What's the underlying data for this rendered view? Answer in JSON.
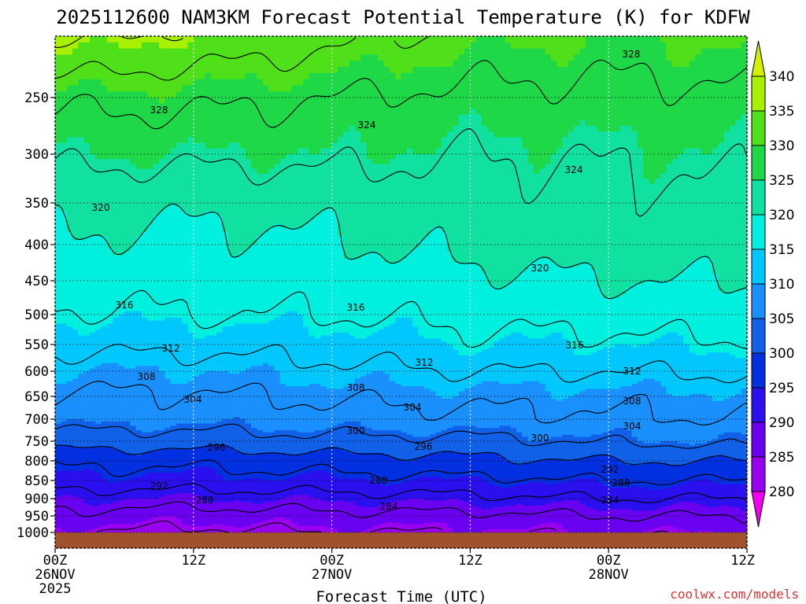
{
  "chart_data": {
    "type": "heatmap",
    "title": "2025112600 NAM3KM Forecast Potential Temperature (K) for KDFW",
    "xlabel": "Forecast Time (UTC)",
    "ylabel": "",
    "y_axis_inverted": true,
    "y_ticks": [
      "250",
      "300",
      "350",
      "400",
      "450",
      "500",
      "550",
      "600",
      "650",
      "700",
      "750",
      "800",
      "850",
      "900",
      "950",
      "1000"
    ],
    "ylim": [
      200,
      1025
    ],
    "x_ticks": [
      {
        "top": "00Z",
        "mid": "26NOV",
        "bottom": "2025"
      },
      {
        "top": "12Z",
        "mid": "",
        "bottom": ""
      },
      {
        "top": "00Z",
        "mid": "27NOV",
        "bottom": ""
      },
      {
        "top": "12Z",
        "mid": "",
        "bottom": ""
      },
      {
        "top": "00Z",
        "mid": "28NOV",
        "bottom": ""
      },
      {
        "top": "12Z",
        "mid": "",
        "bottom": ""
      }
    ],
    "xlim_hours": [
      0,
      60
    ],
    "grid": true,
    "colorbar": {
      "levels": [
        "340",
        "335",
        "330",
        "325",
        "320",
        "315",
        "310",
        "305",
        "300",
        "295",
        "290",
        "285",
        "280"
      ],
      "colors": [
        "#a6f000",
        "#50e01a",
        "#1ed848",
        "#10e0a0",
        "#00f0e0",
        "#00c8ff",
        "#1a90ff",
        "#1060e8",
        "#0030e0",
        "#2a10ee",
        "#6a00f0",
        "#9a00f0",
        "#c800e8"
      ],
      "top_arrow_color": "#d2f000",
      "bottom_arrow_color": "#f000f0"
    },
    "theta_profiles": [
      {
        "hour": 0,
        "levels_hPa": [
          200,
          250,
          300,
          350,
          400,
          450,
          500,
          550,
          600,
          650,
          700,
          750,
          800,
          850,
          900,
          950,
          1000
        ],
        "theta_K": [
          337,
          329,
          325,
          321.5,
          319.5,
          317.5,
          315.5,
          313,
          310,
          307.5,
          306,
          302,
          297,
          294,
          290,
          287,
          284
        ]
      },
      {
        "hour": 12,
        "levels_hPa": [
          200,
          250,
          300,
          350,
          400,
          450,
          500,
          550,
          600,
          650,
          700,
          750,
          800,
          850,
          900,
          950,
          1000
        ],
        "theta_K": [
          335,
          329,
          325,
          321,
          319,
          317.5,
          316,
          313,
          310,
          307.5,
          306,
          302,
          297,
          294,
          290,
          286,
          283
        ]
      },
      {
        "hour": 24,
        "levels_hPa": [
          200,
          250,
          300,
          350,
          400,
          450,
          500,
          550,
          600,
          650,
          700,
          750,
          800,
          850,
          900,
          950,
          1000
        ],
        "theta_K": [
          333,
          328,
          325,
          321.5,
          319.5,
          318,
          316,
          313.5,
          311,
          308.5,
          306.5,
          303,
          298,
          294.5,
          290.5,
          287,
          284
        ]
      },
      {
        "hour": 36,
        "levels_hPa": [
          200,
          250,
          300,
          350,
          400,
          450,
          500,
          550,
          600,
          650,
          700,
          750,
          800,
          850,
          900,
          950,
          1000
        ],
        "theta_K": [
          331,
          327,
          324,
          322.5,
          321,
          319,
          317,
          315,
          312,
          309,
          307,
          303,
          299,
          295,
          291,
          287,
          284
        ]
      },
      {
        "hour": 48,
        "levels_hPa": [
          200,
          250,
          300,
          350,
          400,
          450,
          500,
          550,
          600,
          650,
          700,
          750,
          800,
          850,
          900,
          950,
          1000
        ],
        "theta_K": [
          330,
          327,
          324.5,
          323,
          322,
          320,
          317.5,
          315,
          312,
          309,
          307.5,
          304.5,
          300,
          296,
          292,
          288,
          285
        ]
      },
      {
        "hour": 60,
        "levels_hPa": [
          200,
          250,
          300,
          350,
          400,
          450,
          500,
          550,
          600,
          650,
          700,
          750,
          800,
          850,
          900,
          950,
          1000
        ],
        "theta_K": [
          331,
          327,
          325,
          323,
          322,
          320,
          318,
          315.5,
          312.5,
          309.5,
          308,
          305,
          300,
          296,
          292,
          288,
          285
        ]
      }
    ],
    "contour_labels": [
      "328",
      "328",
      "324",
      "324",
      "320",
      "320",
      "316",
      "316",
      "316",
      "312",
      "312",
      "312",
      "308",
      "308",
      "308",
      "304",
      "304",
      "304",
      "300",
      "300",
      "296",
      "296",
      "292",
      "292",
      "288",
      "288",
      "288",
      "284",
      "284"
    ],
    "surface_color": "#a0522d",
    "credit": "coolwx.com/models"
  }
}
